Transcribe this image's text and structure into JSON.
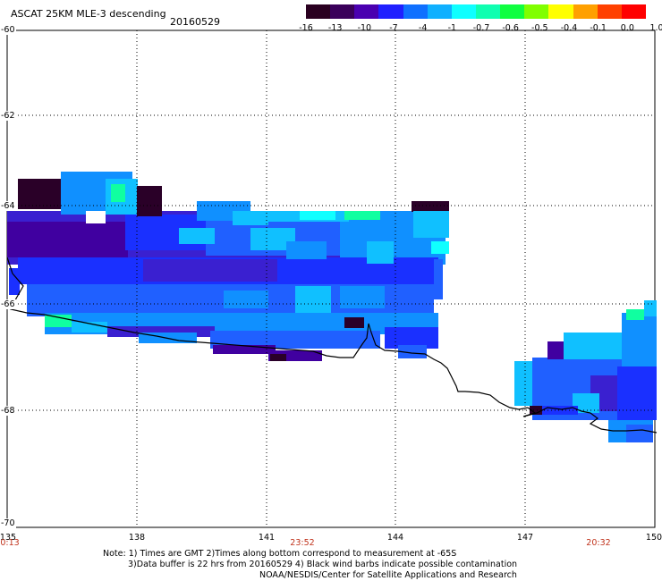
{
  "header": {
    "title": "ASCAT 25KM MLE-3 descending",
    "date": "20160529"
  },
  "colorbar": {
    "labels": [
      "-16",
      "-13",
      "-10",
      "-7",
      "-4",
      "-1",
      "-0.7",
      "-0.6",
      "-0.5",
      "-0.4",
      "-0.1",
      "0.0",
      "1.0"
    ],
    "colors": [
      "#2a0020",
      "#3a005a",
      "#4a00b0",
      "#2020ff",
      "#1070ff",
      "#10b0ff",
      "#10ffff",
      "#10ffb0",
      "#10ff40",
      "#80ff00",
      "#ffff00",
      "#ffa000",
      "#ff4000",
      "#ff0000"
    ]
  },
  "axes": {
    "y_labels": [
      "-60",
      "-62",
      "-64",
      "-66",
      "-68",
      "-70"
    ],
    "x_labels": [
      "135",
      "138",
      "141",
      "144",
      "147",
      "150"
    ],
    "time_labels": [
      "0:13",
      "23:52",
      "20:32"
    ]
  },
  "notes": {
    "line1": "Note: 1) Times are GMT 2)Times along bottom correspond to measurement at -65S",
    "line2": "3)Data buffer is 22 hrs from 20160529 4) Black wind barbs indicate possible contamination",
    "line3": "NOAA/NESDIS/Center for Satellite Applications and Research"
  },
  "palette": {
    "deep_purple": "#2a0028",
    "purple": "#4000a0",
    "violet": "#3a20d0",
    "blue": "#1a30ff",
    "med_blue": "#2060ff",
    "sky_blue": "#1090ff",
    "light_blue": "#10c0ff",
    "cyan": "#10ffff",
    "green_cyan": "#10ffa0"
  }
}
